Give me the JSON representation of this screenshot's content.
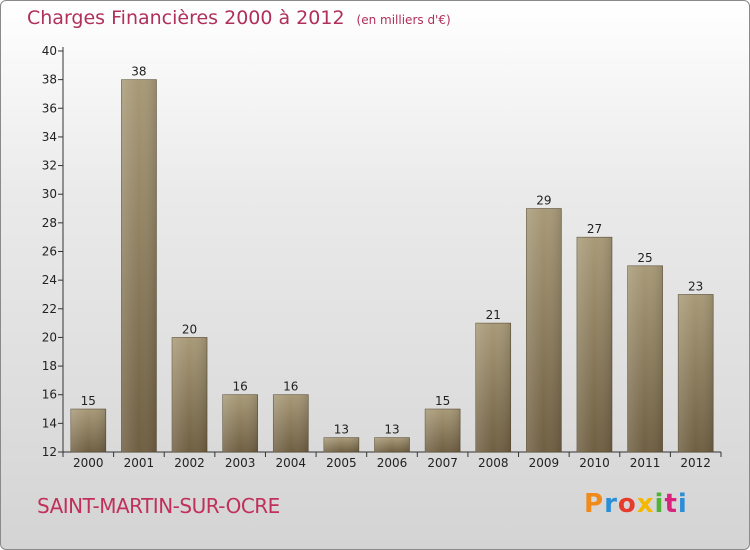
{
  "header": {
    "title": "Charges Financières 2000 à 2012",
    "unit": "(en milliers d'€)"
  },
  "footer": {
    "commune": "SAINT-MARTIN-SUR-OCRE",
    "brand": "Proxiti",
    "brand_colors": [
      "#f08a1c",
      "#2a8fd8",
      "#e63c2e",
      "#f5b800",
      "#4fb33a",
      "#d8247c",
      "#2a8fd8"
    ]
  },
  "colors": {
    "title": "#b0305a",
    "bar_top": "#a89a78",
    "bar_bottom": "#6f5f42",
    "axis": "#333333",
    "grid": "#cfcfcf"
  },
  "chart_data": {
    "type": "bar",
    "title": "Charges Financières 2000 à 2012",
    "subtitle": "(en milliers d'€)",
    "xlabel": "",
    "ylabel": "",
    "categories": [
      "2000",
      "2001",
      "2002",
      "2003",
      "2004",
      "2005",
      "2006",
      "2007",
      "2008",
      "2009",
      "2010",
      "2011",
      "2012"
    ],
    "values": [
      15,
      38,
      20,
      16,
      16,
      13,
      13,
      15,
      21,
      29,
      27,
      25,
      23
    ],
    "ylim": [
      12,
      40
    ],
    "yticks": [
      12,
      14,
      16,
      18,
      20,
      22,
      24,
      26,
      28,
      30,
      32,
      34,
      36,
      38,
      40
    ],
    "grid": false,
    "legend": "none"
  }
}
